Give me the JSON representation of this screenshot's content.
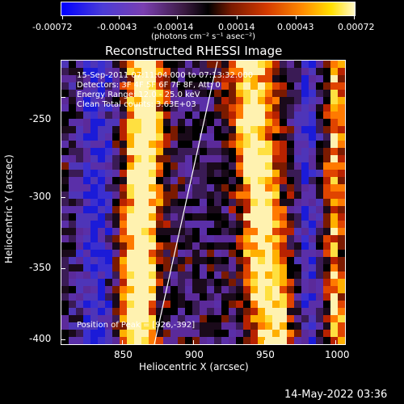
{
  "colorbar": {
    "ticks": [
      "-0.00072",
      "-0.00043",
      "-0.00014",
      "0.00014",
      "0.00043",
      "0.00072"
    ],
    "units": "(photons cm⁻² s⁻¹ asec⁻²)"
  },
  "plot": {
    "title": "Reconstructed RHESSI Image",
    "xlabel": "Heliocentric X (arcsec)",
    "ylabel": "Heliocentric Y (arcsec)",
    "x_ticks": [
      "850",
      "900",
      "950",
      "1000"
    ],
    "y_ticks": [
      "-250",
      "-300",
      "-350",
      "-400"
    ],
    "annotations": {
      "time": "15-Sep-2011 07:11:04.000 to 07:13:32.000",
      "detectors": "Detectors: 3F 4F 5F 6F 7F 8F, Att: 0",
      "energy": "Energy Range: 12.0 - 25.0 keV",
      "clean": "Clean    Total counts: 3.63E+03",
      "peak": "Position of Peak = [926,-392]"
    }
  },
  "footer": {
    "timestamp": "14-May-2022 03:36"
  }
}
